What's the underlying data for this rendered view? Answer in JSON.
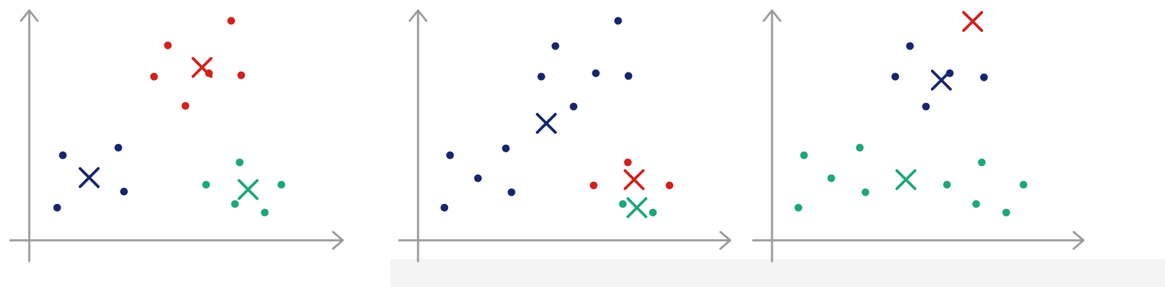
{
  "chart_data": [
    {
      "type": "scatter",
      "xlim": [
        0,
        100
      ],
      "ylim": [
        0,
        100
      ],
      "series": [
        {
          "marker": "dot",
          "color": "#d0211c",
          "x": [
            44.2,
            64.4,
            39.8,
            57.3,
            67.6,
            49.8
          ],
          "y": [
            84.8,
            95.5,
            71.2,
            72.7,
            71.8,
            58.5
          ]
        },
        {
          "marker": "dot",
          "color": "#16266e",
          "x": [
            10.7,
            28.4,
            30.2,
            8.9
          ],
          "y": [
            37,
            40.3,
            21.2,
            14.2
          ]
        },
        {
          "marker": "dot",
          "color": "#1ea67a",
          "x": [
            67.1,
            56.4,
            80.4,
            65.6,
            75.1
          ],
          "y": [
            33.9,
            24.2,
            24.2,
            15.8,
            12.1
          ]
        },
        {
          "marker": "cross",
          "color": "#d0211c",
          "x": [
            55.1
          ],
          "y": [
            75.2
          ]
        },
        {
          "marker": "cross",
          "color": "#16266e",
          "x": [
            19.1
          ],
          "y": [
            27.3
          ]
        },
        {
          "marker": "cross",
          "color": "#1ea67a",
          "x": [
            69.8
          ],
          "y": [
            22.1
          ]
        }
      ]
    },
    {
      "type": "scatter",
      "xlim": [
        0,
        100
      ],
      "ylim": [
        0,
        100
      ],
      "series": [
        {
          "marker": "dot",
          "color": "#16266e",
          "x": [
            43.8,
            63.8,
            39.3,
            56.7,
            67.1,
            49.6,
            10.2,
            28,
            19.1,
            29.8,
            8.4
          ],
          "y": [
            84.5,
            95.5,
            71.2,
            72.7,
            71.5,
            58.2,
            37,
            40,
            27,
            20.9,
            14.2
          ]
        },
        {
          "marker": "dot",
          "color": "#d0211c",
          "x": [
            66.9,
            56,
            80.2
          ],
          "y": [
            33.9,
            23.9,
            23.9
          ]
        },
        {
          "marker": "dot",
          "color": "#1ea67a",
          "x": [
            65.3,
            74.9
          ],
          "y": [
            15.8,
            12.1
          ]
        },
        {
          "marker": "cross",
          "color": "#16266e",
          "x": [
            40.9
          ],
          "y": [
            50.9
          ]
        },
        {
          "marker": "cross",
          "color": "#d0211c",
          "x": [
            68.9
          ],
          "y": [
            26.4
          ]
        },
        {
          "marker": "cross",
          "color": "#1ea67a",
          "x": [
            69.8
          ],
          "y": [
            14.2
          ]
        }
      ]
    },
    {
      "type": "scatter",
      "xlim": [
        0,
        100
      ],
      "ylim": [
        0,
        100
      ],
      "series": [
        {
          "marker": "dot",
          "color": "#16266e",
          "x": [
            44,
            39.3,
            56.7,
            67.6,
            49.1
          ],
          "y": [
            84.5,
            71.2,
            72.7,
            70.9,
            58.2
          ]
        },
        {
          "marker": "dot",
          "color": "#1ea67a",
          "x": [
            10.2,
            28,
            18.9,
            29.8,
            8.4,
            66.9,
            55.8,
            80.2,
            65.1,
            74.7
          ],
          "y": [
            37,
            40.3,
            27,
            20.9,
            14.2,
            33.9,
            24.2,
            24.2,
            15.8,
            12.1
          ]
        },
        {
          "marker": "cross",
          "color": "#d0211c",
          "x": [
            64
          ],
          "y": [
            95.2
          ]
        },
        {
          "marker": "cross",
          "color": "#16266e",
          "x": [
            54
          ],
          "y": [
            69.7
          ]
        },
        {
          "marker": "cross",
          "color": "#1ea67a",
          "x": [
            42.7
          ],
          "y": [
            26.4
          ]
        }
      ]
    }
  ]
}
